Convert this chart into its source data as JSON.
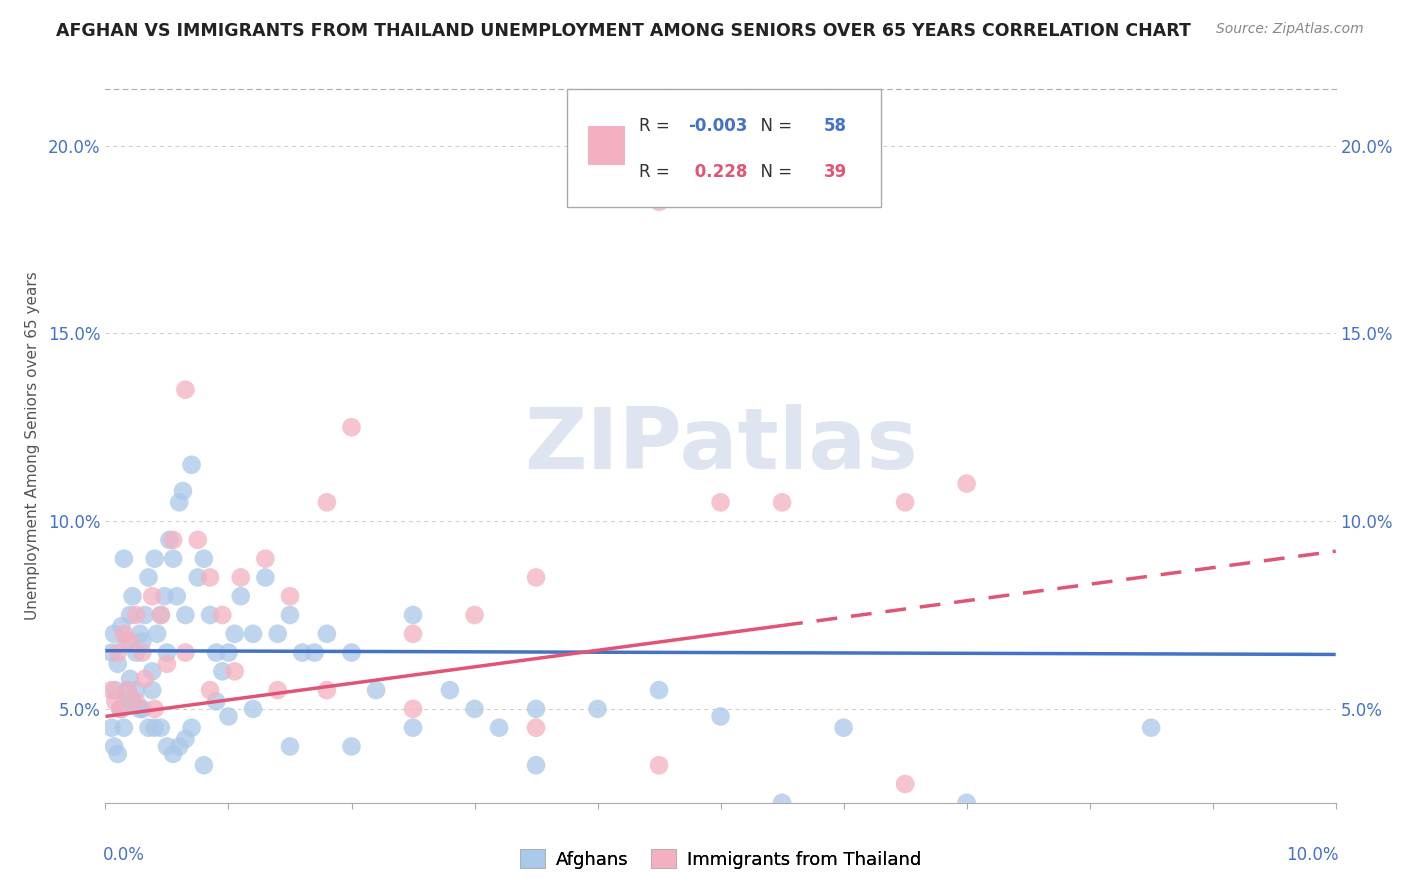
{
  "title": "AFGHAN VS IMMIGRANTS FROM THAILAND UNEMPLOYMENT AMONG SENIORS OVER 65 YEARS CORRELATION CHART",
  "source": "Source: ZipAtlas.com",
  "ylabel": "Unemployment Among Seniors over 65 years",
  "xlim": [
    0.0,
    10.0
  ],
  "ylim": [
    2.5,
    21.5
  ],
  "ytick_vals": [
    5.0,
    10.0,
    15.0,
    20.0
  ],
  "ytick_labels": [
    "5.0%",
    "10.0%",
    "15.0%",
    "20.0%"
  ],
  "legend_r1": "-0.003",
  "legend_n1": "58",
  "legend_r2": "0.228",
  "legend_n2": "39",
  "blue_color": "#aac8e8",
  "pink_color": "#f4b0c0",
  "blue_line_color": "#4472c4",
  "pink_line_color": "#e05575",
  "watermark_color": "#cdd8e8",
  "blue_line_y0": 6.55,
  "blue_line_y1": 6.45,
  "pink_line_y0": 4.8,
  "pink_line_y1": 9.2,
  "afghans_x": [
    0.05,
    0.07,
    0.1,
    0.13,
    0.15,
    0.17,
    0.2,
    0.22,
    0.25,
    0.28,
    0.3,
    0.32,
    0.35,
    0.38,
    0.4,
    0.42,
    0.45,
    0.48,
    0.5,
    0.52,
    0.55,
    0.58,
    0.6,
    0.63,
    0.65,
    0.7,
    0.75,
    0.8,
    0.85,
    0.9,
    0.95,
    1.0,
    1.05,
    1.1,
    1.2,
    1.3,
    1.4,
    1.5,
    1.6,
    1.7,
    1.8,
    2.0,
    2.2,
    2.5,
    2.8,
    3.0,
    3.2,
    3.5,
    4.0,
    4.5,
    5.0,
    5.5,
    6.0,
    7.0,
    8.5,
    0.08,
    0.12,
    0.18
  ],
  "afghans_y": [
    6.5,
    7.0,
    6.2,
    7.2,
    9.0,
    6.8,
    7.5,
    8.0,
    6.5,
    7.0,
    6.8,
    7.5,
    8.5,
    6.0,
    9.0,
    7.0,
    7.5,
    8.0,
    6.5,
    9.5,
    9.0,
    8.0,
    10.5,
    10.8,
    7.5,
    11.5,
    8.5,
    9.0,
    7.5,
    6.5,
    6.0,
    6.5,
    7.0,
    8.0,
    7.0,
    8.5,
    7.0,
    7.5,
    6.5,
    6.5,
    7.0,
    6.5,
    5.5,
    7.5,
    5.5,
    5.0,
    4.5,
    5.0,
    5.0,
    5.5,
    4.8,
    2.5,
    4.5,
    2.5,
    4.5,
    5.5,
    5.0,
    5.5
  ],
  "afghans_y2": [
    4.5,
    4.0,
    3.8,
    5.0,
    4.5,
    5.2,
    5.8,
    5.2,
    5.5,
    5.0,
    5.0,
    4.5,
    5.5,
    4.5,
    4.5,
    4.0,
    3.8,
    4.0,
    4.2,
    4.5,
    3.5,
    5.2,
    4.8,
    5.0,
    4.0,
    4.0,
    4.5,
    3.5
  ],
  "afghans_x2": [
    0.05,
    0.07,
    0.1,
    0.13,
    0.15,
    0.17,
    0.2,
    0.22,
    0.25,
    0.28,
    0.3,
    0.35,
    0.38,
    0.4,
    0.45,
    0.5,
    0.55,
    0.6,
    0.65,
    0.7,
    0.8,
    0.9,
    1.0,
    1.2,
    1.5,
    2.0,
    2.5,
    3.5
  ],
  "thai_x": [
    0.05,
    0.1,
    0.15,
    0.2,
    0.25,
    0.3,
    0.38,
    0.45,
    0.55,
    0.65,
    0.75,
    0.85,
    0.95,
    1.1,
    1.3,
    1.5,
    1.8,
    2.0,
    2.5,
    3.0,
    3.5,
    4.5,
    5.0,
    5.5,
    6.5,
    7.0
  ],
  "thai_y": [
    5.5,
    6.5,
    7.0,
    6.8,
    7.5,
    6.5,
    8.0,
    7.5,
    9.5,
    13.5,
    9.5,
    8.5,
    7.5,
    8.5,
    9.0,
    8.0,
    10.5,
    12.5,
    7.0,
    7.5,
    8.5,
    18.5,
    10.5,
    10.5,
    10.5,
    11.0
  ],
  "thai_x2": [
    0.08,
    0.12,
    0.18,
    0.25,
    0.32,
    0.4,
    0.5,
    0.65,
    0.85,
    1.05,
    1.4,
    1.8,
    2.5,
    3.5,
    4.5,
    6.5
  ],
  "thai_y2": [
    5.2,
    5.0,
    5.5,
    5.2,
    5.8,
    5.0,
    6.2,
    6.5,
    5.5,
    6.0,
    5.5,
    5.5,
    5.0,
    4.5,
    3.5,
    3.0
  ]
}
